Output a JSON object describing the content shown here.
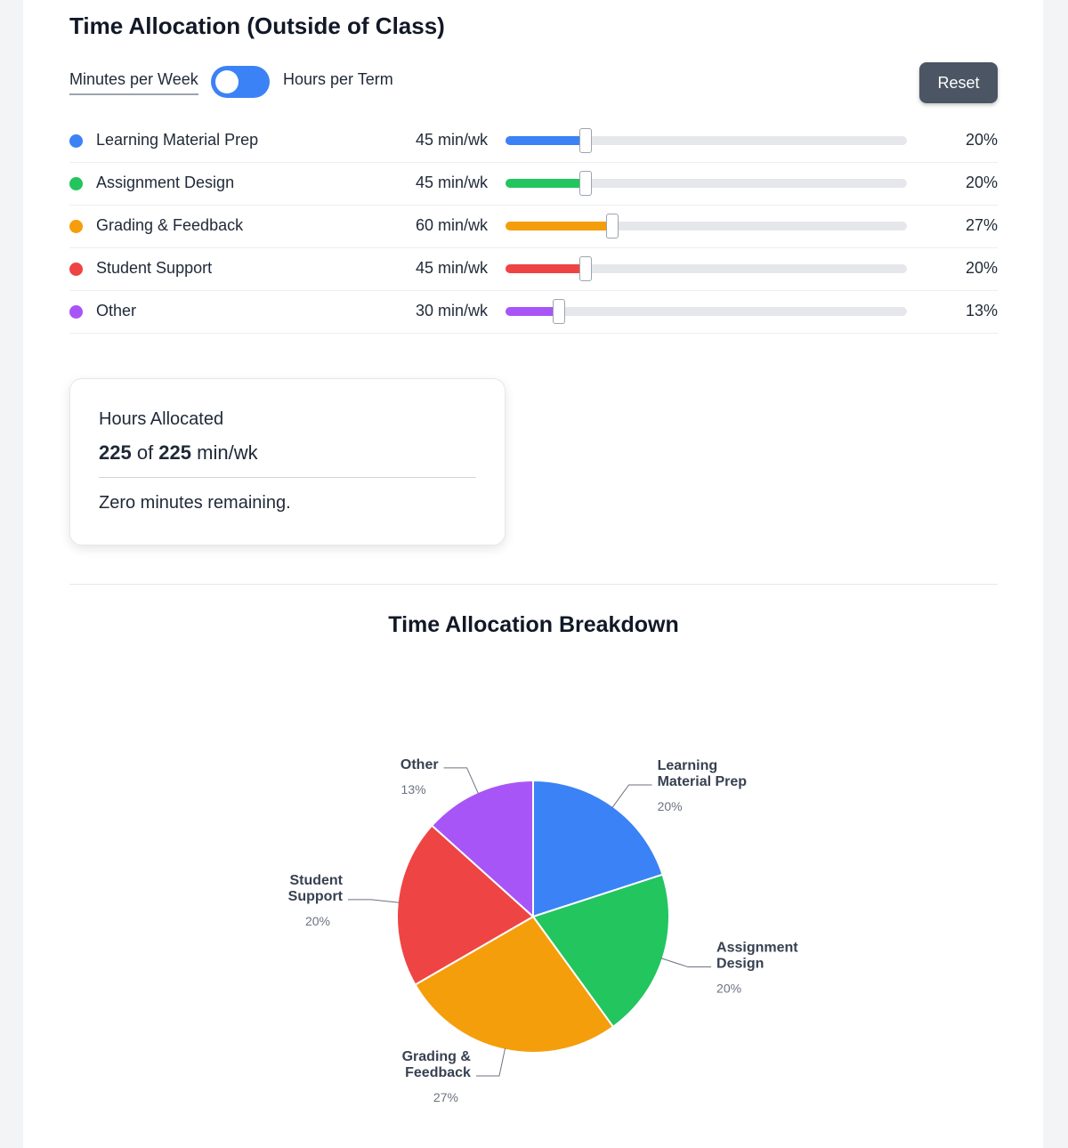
{
  "header": {
    "title": "Time Allocation (Outside of Class)"
  },
  "toggle": {
    "left_label": "Minutes per Week",
    "right_label": "Hours per Term"
  },
  "reset_label": "Reset",
  "allocations": [
    {
      "label": "Learning Material Prep",
      "minutes": 45,
      "minutes_text": "45 min/wk",
      "percent_text": "20%",
      "color": "#3b82f6"
    },
    {
      "label": "Assignment Design",
      "minutes": 45,
      "minutes_text": "45 min/wk",
      "percent_text": "20%",
      "color": "#22c55e"
    },
    {
      "label": "Grading & Feedback",
      "minutes": 60,
      "minutes_text": "60 min/wk",
      "percent_text": "27%",
      "color": "#f59e0b"
    },
    {
      "label": "Student Support",
      "minutes": 45,
      "minutes_text": "45 min/wk",
      "percent_text": "20%",
      "color": "#ef4444"
    },
    {
      "label": "Other",
      "minutes": 30,
      "minutes_text": "30 min/wk",
      "percent_text": "13%",
      "color": "#a855f7"
    }
  ],
  "slider_max_minutes": 225,
  "summary": {
    "label": "Hours Allocated",
    "allocated": "225",
    "of_text": " of ",
    "total": "225",
    "unit": " min/wk",
    "status": "Zero minutes remaining."
  },
  "chart_title": "Time Allocation Breakdown",
  "chart_data": {
    "type": "pie",
    "title": "Time Allocation Breakdown",
    "slices": [
      {
        "name": "Learning Material Prep",
        "label_lines": [
          "Learning",
          "Material Prep"
        ],
        "value": 45,
        "percent": "20%",
        "color": "#3b82f6"
      },
      {
        "name": "Assignment Design",
        "label_lines": [
          "Assignment",
          "Design"
        ],
        "value": 45,
        "percent": "20%",
        "color": "#22c55e"
      },
      {
        "name": "Grading & Feedback",
        "label_lines": [
          "Grading &",
          "Feedback"
        ],
        "value": 60,
        "percent": "27%",
        "color": "#f59e0b"
      },
      {
        "name": "Student Support",
        "label_lines": [
          "Student",
          "Support"
        ],
        "value": 45,
        "percent": "20%",
        "color": "#ef4444"
      },
      {
        "name": "Other",
        "label_lines": [
          "Other"
        ],
        "value": 30,
        "percent": "13%",
        "color": "#a855f7"
      }
    ]
  }
}
